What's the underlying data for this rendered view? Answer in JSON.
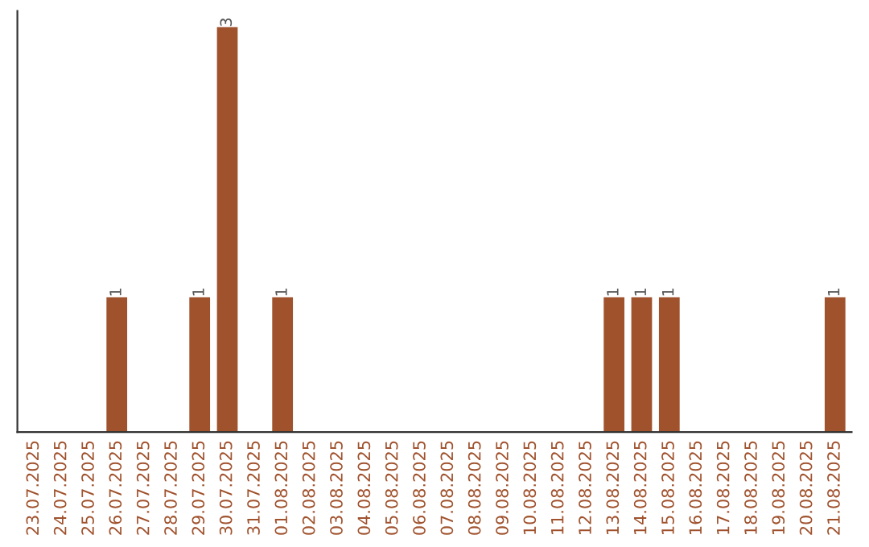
{
  "chart_data": {
    "type": "bar",
    "categories": [
      "23.07.2025",
      "24.07.2025",
      "25.07.2025",
      "26.07.2025",
      "27.07.2025",
      "28.07.2025",
      "29.07.2025",
      "30.07.2025",
      "31.07.2025",
      "01.08.2025",
      "02.08.2025",
      "03.08.2025",
      "04.08.2025",
      "05.08.2025",
      "06.08.2025",
      "07.08.2025",
      "08.08.2025",
      "09.08.2025",
      "10.08.2025",
      "11.08.2025",
      "12.08.2025",
      "13.08.2025",
      "14.08.2025",
      "15.08.2025",
      "16.08.2025",
      "17.08.2025",
      "18.08.2025",
      "19.08.2025",
      "20.08.2025",
      "21.08.2025"
    ],
    "values": [
      0,
      0,
      0,
      1,
      0,
      0,
      1,
      3,
      0,
      1,
      0,
      0,
      0,
      0,
      0,
      0,
      0,
      0,
      0,
      0,
      0,
      1,
      1,
      1,
      0,
      0,
      0,
      0,
      0,
      1
    ],
    "value_labels": [
      null,
      null,
      null,
      "1",
      null,
      null,
      "1",
      "3",
      null,
      "1",
      null,
      null,
      null,
      null,
      null,
      null,
      null,
      null,
      null,
      null,
      null,
      "1",
      "1",
      "1",
      null,
      null,
      null,
      null,
      null,
      "1"
    ],
    "color": "#a0522d",
    "tick_labels": "x",
    "grid": false,
    "legend": false
  }
}
